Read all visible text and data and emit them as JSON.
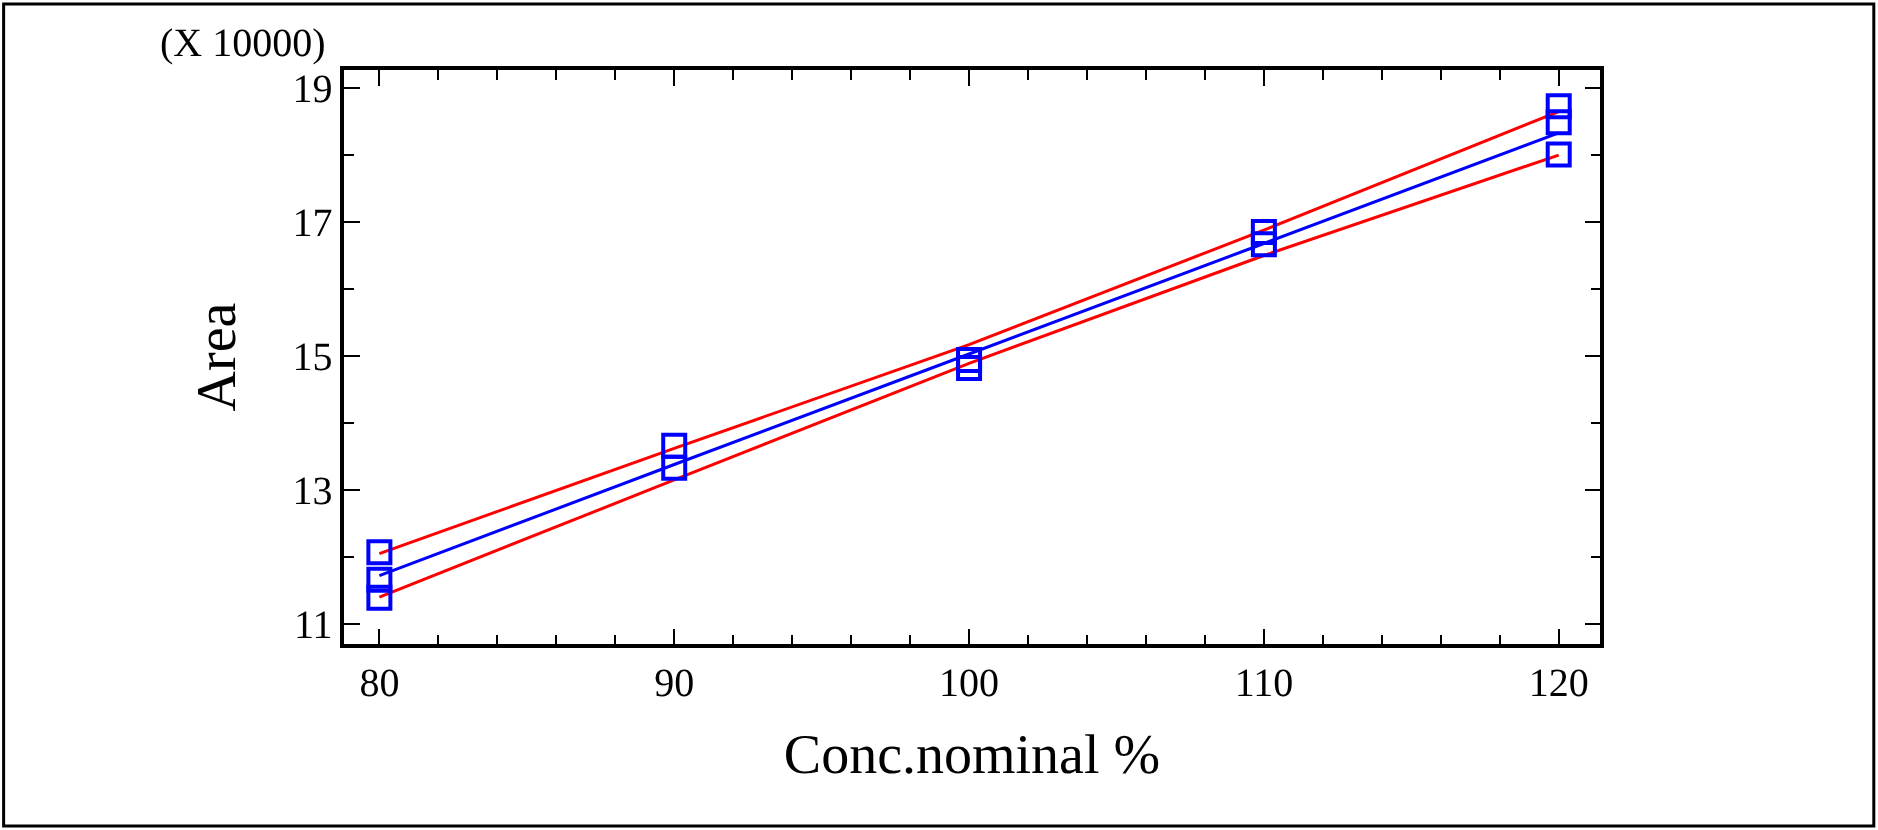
{
  "chart_data": {
    "type": "line",
    "xlabel": "Conc.nominal %",
    "ylabel": "Area",
    "annotations": [
      "(X 10000)"
    ],
    "xlim": [
      78.8,
      121.4
    ],
    "ylim": [
      10.7,
      19.27
    ],
    "xticks": [
      80,
      90,
      100,
      110,
      120
    ],
    "yticks": [
      11,
      13,
      15,
      17,
      19
    ],
    "series": [
      {
        "color": "#ff0000",
        "x": [
          80,
          90,
          100,
          110,
          120
        ],
        "values": [
          12.05,
          13.62,
          15.17,
          16.88,
          18.65
        ]
      },
      {
        "color": "#ff0000",
        "x": [
          80,
          90,
          100,
          110,
          120
        ],
        "values": [
          11.4,
          13.15,
          14.89,
          16.5,
          18.0
        ]
      },
      {
        "color": "#0000ff",
        "x": [
          80,
          90,
          100,
          110,
          120
        ],
        "values": [
          11.72,
          13.38,
          15.03,
          16.68,
          18.33
        ]
      },
      {
        "type": "scatter",
        "marker": "square",
        "color": "#0000ff",
        "x": [
          80,
          80,
          80,
          90,
          90,
          100,
          100,
          110,
          110,
          120,
          120,
          120
        ],
        "values": [
          12.07,
          11.66,
          11.39,
          13.66,
          13.33,
          14.94,
          14.82,
          16.85,
          16.67,
          18.73,
          18.49,
          18.01
        ]
      }
    ]
  }
}
